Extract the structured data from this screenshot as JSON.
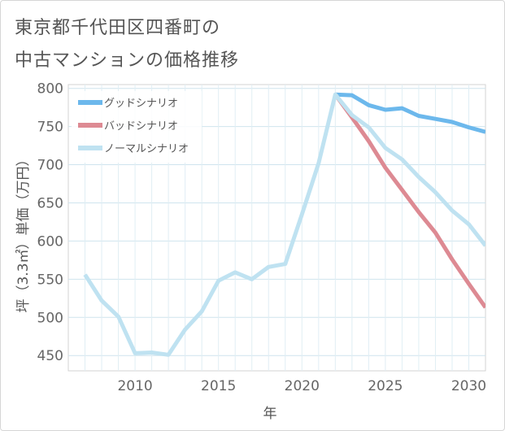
{
  "chart_data": {
    "type": "line",
    "title_line1": "東京都千代田区四番町の",
    "title_line2": "中古マンションの価格推移",
    "xlabel": "年",
    "ylabel": "坪（3.3㎡）単価（万円）",
    "xlim": [
      2006,
      2031
    ],
    "ylim": [
      430,
      805
    ],
    "xticks": [
      "2010",
      "2015",
      "2020",
      "2025",
      "2030"
    ],
    "yticks": [
      "450",
      "500",
      "550",
      "600",
      "650",
      "700",
      "750",
      "800"
    ],
    "grid": true,
    "legend_position": "top-left",
    "series": [
      {
        "name": "グッドシナリオ",
        "color": "#6cb8ec",
        "x": [
          2022,
          2023,
          2024,
          2025,
          2026,
          2027,
          2028,
          2029,
          2030,
          2031
        ],
        "values": [
          792,
          791,
          778,
          772,
          774,
          764,
          760,
          756,
          749,
          743
        ]
      },
      {
        "name": "バッドシナリオ",
        "color": "#dd8a93",
        "x": [
          2022,
          2023,
          2024,
          2025,
          2026,
          2027,
          2028,
          2029,
          2030,
          2031
        ],
        "values": [
          792,
          762,
          731,
          696,
          667,
          638,
          611,
          576,
          544,
          513
        ]
      },
      {
        "name": "ノーマルシナリオ",
        "color": "#bfe2f1",
        "x": [
          2007,
          2008,
          2009,
          2010,
          2011,
          2012,
          2013,
          2014,
          2015,
          2016,
          2017,
          2018,
          2019,
          2020,
          2021,
          2022,
          2023,
          2024,
          2025,
          2026,
          2027,
          2028,
          2029,
          2030,
          2031
        ],
        "values": [
          556,
          522,
          501,
          453,
          454,
          451,
          484,
          508,
          548,
          559,
          550,
          566,
          570,
          635,
          702,
          792,
          765,
          749,
          722,
          707,
          684,
          664,
          640,
          622,
          594
        ]
      }
    ]
  }
}
